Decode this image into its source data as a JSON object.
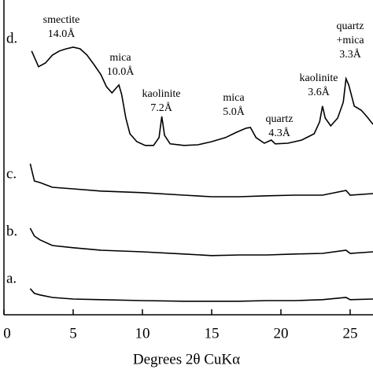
{
  "chart_data": {
    "type": "line",
    "x_label": "Degrees 2θ  CuKα",
    "xlim": [
      0,
      26.65
    ],
    "ylim": [
      0,
      100
    ],
    "xticks": [
      0,
      5,
      10,
      15,
      20,
      25
    ],
    "series": [
      {
        "name": "a.",
        "color": "#000000",
        "x": [
          1.9,
          2.2,
          2.6,
          3.5,
          5,
          7,
          10,
          13,
          15,
          17,
          19,
          21,
          23,
          24.7,
          25,
          26.65
        ],
        "values": [
          8.3,
          6.8,
          6.3,
          5.5,
          5,
          4.8,
          4.5,
          4.3,
          4.3,
          4.3,
          4.5,
          4.5,
          4.8,
          5.5,
          4.8,
          5
        ]
      },
      {
        "name": "b.",
        "color": "#000000",
        "x": [
          1.9,
          2.2,
          2.6,
          3.5,
          5,
          7,
          10,
          13,
          15,
          17,
          19,
          21,
          23,
          24.7,
          25,
          26.65
        ],
        "values": [
          27.5,
          25,
          23.8,
          22,
          21.3,
          20.5,
          20,
          19.3,
          18.8,
          19,
          19,
          19.3,
          19.5,
          20.5,
          19.5,
          20
        ]
      },
      {
        "name": "c.",
        "color": "#000000",
        "x": [
          1.9,
          2.2,
          2.6,
          3.5,
          5,
          7,
          10,
          13,
          15,
          17,
          19,
          21,
          23,
          24.7,
          25,
          26.65
        ],
        "values": [
          48,
          42.5,
          42,
          40.5,
          40,
          39.3,
          38.8,
          38,
          37.5,
          37.5,
          37.8,
          38,
          38,
          39.5,
          38,
          38.5
        ]
      },
      {
        "name": "d.",
        "color": "#000000",
        "x": [
          2.0,
          2.5,
          3.0,
          3.5,
          4.0,
          4.5,
          5.0,
          5.5,
          6.0,
          6.5,
          7.0,
          7.4,
          7.8,
          8.1,
          8.3,
          8.5,
          8.8,
          9.1,
          9.6,
          10.2,
          10.8,
          11.2,
          11.4,
          11.6,
          12.0,
          13.0,
          14.0,
          15.0,
          16.0,
          16.8,
          17.5,
          17.8,
          18.2,
          18.8,
          19.3,
          19.6,
          20.5,
          21.5,
          22.4,
          22.8,
          23.0,
          23.2,
          23.6,
          24.1,
          24.5,
          24.7,
          24.9,
          25.3,
          25.8,
          26.2,
          26.65
        ],
        "values": [
          83.8,
          78.8,
          80,
          82.5,
          83.8,
          84.5,
          85,
          84.5,
          82.5,
          79.5,
          76.3,
          72.5,
          70.5,
          72,
          73,
          70,
          62.5,
          57.5,
          55,
          53.8,
          53.8,
          56.3,
          63,
          57,
          54.3,
          53.8,
          54,
          55,
          56.3,
          58,
          59.3,
          59.5,
          56.3,
          54.5,
          55.5,
          54.3,
          54.5,
          55.5,
          57.5,
          61.3,
          66.3,
          62.5,
          60,
          62.5,
          67.5,
          75,
          73,
          66.3,
          65,
          63,
          60.5
        ]
      }
    ],
    "annotations": [
      [
        "smectite",
        "14.0Å"
      ],
      [
        "mica",
        "10.0Å"
      ],
      [
        "kaolinite",
        "7.2Å"
      ],
      [
        "mica",
        "5.0Å"
      ],
      [
        "quartz",
        "4.3Å"
      ],
      [
        "kaolinite",
        "3.6Å"
      ],
      [
        "quartz",
        "+mica",
        "3.3Å"
      ]
    ]
  }
}
